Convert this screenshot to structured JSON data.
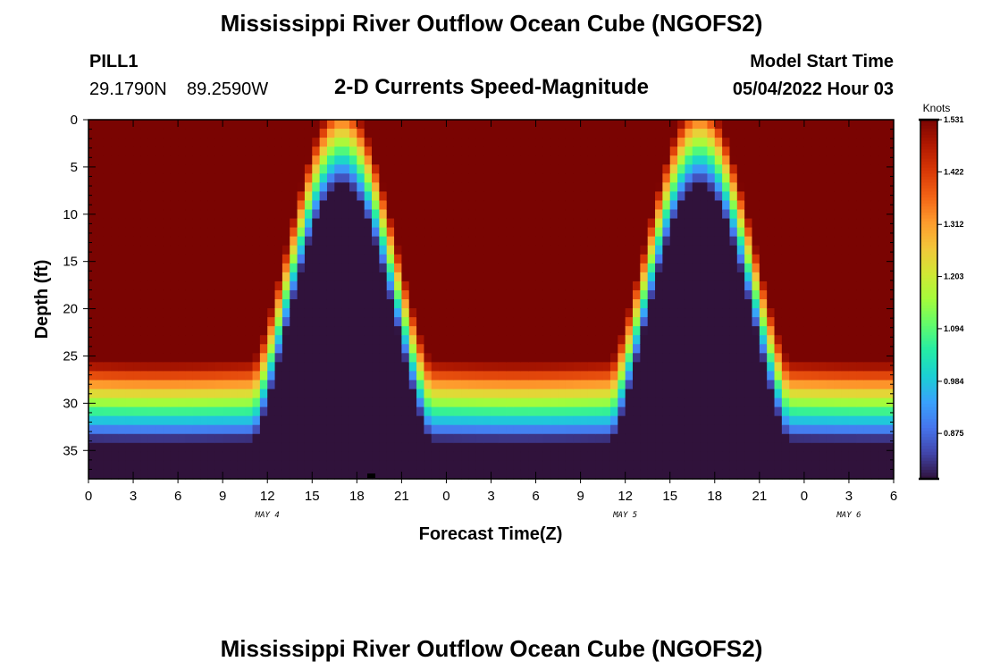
{
  "chart_data": {
    "type": "heatmap",
    "title": "Mississippi River Outflow Ocean Cube (NGOFS2)",
    "station": {
      "name": "PILL1",
      "lat": "29.1790N",
      "lon": "89.2590W"
    },
    "subtitle": "2-D Currents Speed-Magnitude",
    "model_start": {
      "label": "Model Start Time",
      "value": "05/04/2022 Hour 03"
    },
    "xlabel": "Forecast Time(Z)",
    "ylabel": "Depth (ft)",
    "x_range_hours": [
      0,
      54
    ],
    "y_range_ft": [
      0,
      38
    ],
    "x_ticks": [
      "0",
      "3",
      "6",
      "9",
      "12",
      "15",
      "18",
      "21",
      "0",
      "3",
      "6",
      "9",
      "12",
      "15",
      "18",
      "21",
      "0",
      "3",
      "6"
    ],
    "x_tick_hours": [
      0,
      3,
      6,
      9,
      12,
      15,
      18,
      21,
      24,
      27,
      30,
      33,
      36,
      39,
      42,
      45,
      48,
      51,
      54
    ],
    "date_labels": [
      {
        "text": "MAY 4",
        "hour": 12
      },
      {
        "text": "MAY 5",
        "hour": 36
      },
      {
        "text": "MAY 6",
        "hour": 51
      }
    ],
    "y_ticks": [
      0,
      5,
      10,
      15,
      20,
      25,
      30,
      35
    ],
    "colorbar": {
      "unit": "Knots",
      "min": 0.78,
      "max": 1.531,
      "ticks": [
        "1.531",
        "1.422",
        "1.312",
        "1.203",
        "1.094",
        "0.984",
        "0.875"
      ],
      "colormap": [
        "#30123b",
        "#4145ab",
        "#4675ed",
        "#39a2fc",
        "#1bcfd4",
        "#24eca6",
        "#61fc6c",
        "#a4fc3b",
        "#d1e834",
        "#f3c63a",
        "#fe9b2d",
        "#f36315",
        "#d93806",
        "#b11901",
        "#7a0402"
      ]
    },
    "description_model": {
      "peak_hours": [
        5,
        29
      ],
      "trough_hours": [
        19,
        43
      ],
      "period_hours": 24
    }
  },
  "footer_title": "Mississippi River Outflow Ocean Cube (NGOFS2)"
}
